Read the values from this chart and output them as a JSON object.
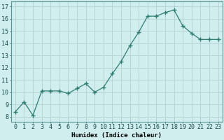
{
  "x": [
    0,
    1,
    2,
    3,
    4,
    5,
    6,
    7,
    8,
    9,
    10,
    11,
    12,
    13,
    14,
    15,
    16,
    17,
    18,
    19,
    20,
    21,
    22,
    23
  ],
  "y": [
    8.4,
    9.2,
    8.1,
    10.1,
    10.1,
    10.1,
    9.9,
    10.3,
    10.7,
    10.0,
    10.4,
    11.5,
    12.5,
    13.8,
    14.9,
    16.2,
    16.2,
    16.5,
    16.7,
    15.4,
    14.8,
    14.3,
    14.3,
    14.3
  ],
  "line_color": "#2e7d6e",
  "marker": "+",
  "marker_size": 4,
  "bg_color": "#d0eeee",
  "grid_color": "#b8d4d4",
  "xlabel": "Humidex (Indice chaleur)",
  "ylabel_ticks": [
    8,
    9,
    10,
    11,
    12,
    13,
    14,
    15,
    16,
    17
  ],
  "ylim": [
    7.6,
    17.4
  ],
  "xlim": [
    -0.5,
    23.5
  ],
  "xlabel_fontsize": 6.5,
  "tick_fontsize": 6,
  "lw": 0.9
}
